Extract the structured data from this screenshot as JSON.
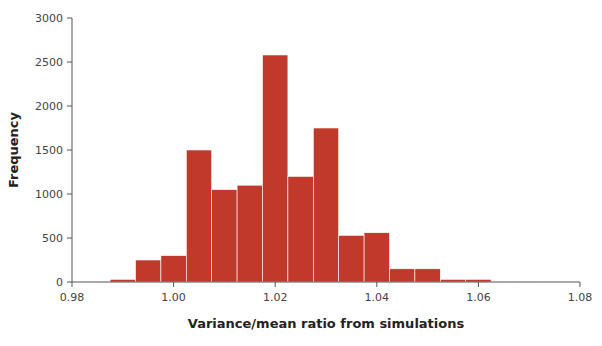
{
  "chart_data": {
    "type": "histogram",
    "bins": [
      0.9875,
      0.9925,
      0.9975,
      1.0025,
      1.0075,
      1.0125,
      1.0175,
      1.0225,
      1.0275,
      1.0325,
      1.0375,
      1.0425,
      1.0475,
      1.0525,
      1.0575,
      1.0625,
      1.0675,
      1.0725
    ],
    "values": [
      30,
      250,
      300,
      1500,
      1050,
      1100,
      2580,
      1200,
      1750,
      530,
      560,
      150,
      150,
      30,
      30,
      5,
      5
    ],
    "color": "#c0392b",
    "xlim": [
      0.98,
      1.08
    ],
    "ylim": [
      0,
      3000
    ],
    "xticks": [
      0.98,
      {
        "value": 1.0,
        "label": "1.00"
      },
      1.02,
      1.04,
      1.06,
      1.08
    ],
    "yticks": [
      0,
      500,
      1000,
      1500,
      2000,
      2500,
      3000
    ],
    "x_label": "Variance/mean ratio from simulations",
    "y_label": "Frequency"
  }
}
